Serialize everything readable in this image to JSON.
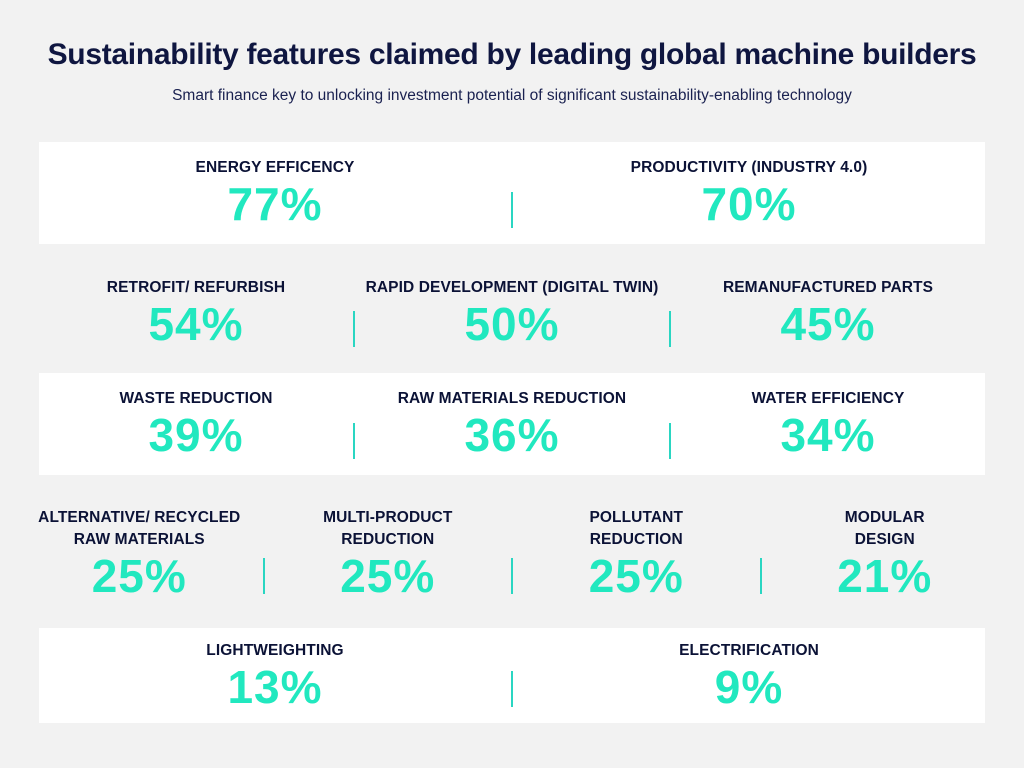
{
  "header": {
    "title": "Sustainability features claimed by leading global machine builders",
    "subtitle": "Smart finance key to unlocking investment potential of significant sustainability-enabling technology"
  },
  "colors": {
    "value": "#21e8bf",
    "title": "#0f1640",
    "band": "#ffffff",
    "background": "#f2f2f2",
    "divider": "#2ad6c2"
  },
  "chart_data": {
    "type": "table",
    "title": "Sustainability features claimed by leading global machine builders",
    "subtitle": "Smart finance key to unlocking investment potential of significant sustainability-enabling technology",
    "unit": "%",
    "categories": [
      "ENERGY EFFICENCY",
      "PRODUCTIVITY (INDUSTRY 4.0)",
      "RETROFIT/ REFURBISH",
      "RAPID DEVELOPMENT (DIGITAL TWIN)",
      "REMANUFACTURED PARTS",
      "WASTE REDUCTION",
      "RAW MATERIALS REDUCTION",
      "WATER EFFICIENCY",
      "ALTERNATIVE/ RECYCLED RAW MATERIALS",
      "MULTI-PRODUCT REDUCTION",
      "POLLUTANT REDUCTION",
      "MODULAR DESIGN",
      "LIGHTWEIGHTING",
      "ELECTRIFICATION"
    ],
    "values": [
      77,
      70,
      54,
      50,
      45,
      39,
      36,
      34,
      25,
      25,
      25,
      21,
      13,
      9
    ],
    "rows": [
      {
        "items": [
          {
            "label_lines": [
              "ENERGY EFFICENCY"
            ],
            "value": "77%"
          },
          {
            "label_lines": [
              "PRODUCTIVITY (INDUSTRY 4.0)"
            ],
            "value": "70%"
          }
        ]
      },
      {
        "items": [
          {
            "label_lines": [
              "RETROFIT/ REFURBISH"
            ],
            "value": "54%"
          },
          {
            "label_lines": [
              "RAPID DEVELOPMENT (DIGITAL TWIN)"
            ],
            "value": "50%"
          },
          {
            "label_lines": [
              "REMANUFACTURED PARTS"
            ],
            "value": "45%"
          }
        ]
      },
      {
        "items": [
          {
            "label_lines": [
              "WASTE REDUCTION"
            ],
            "value": "39%"
          },
          {
            "label_lines": [
              "RAW MATERIALS REDUCTION"
            ],
            "value": "36%"
          },
          {
            "label_lines": [
              "WATER EFFICIENCY"
            ],
            "value": "34%"
          }
        ]
      },
      {
        "items": [
          {
            "label_lines": [
              "ALTERNATIVE/ RECYCLED",
              "RAW MATERIALS"
            ],
            "value": "25%"
          },
          {
            "label_lines": [
              "MULTI-PRODUCT",
              "REDUCTION"
            ],
            "value": "25%"
          },
          {
            "label_lines": [
              "POLLUTANT",
              "REDUCTION"
            ],
            "value": "25%"
          },
          {
            "label_lines": [
              "MODULAR",
              "DESIGN"
            ],
            "value": "21%"
          }
        ]
      },
      {
        "items": [
          {
            "label_lines": [
              "LIGHTWEIGHTING"
            ],
            "value": "13%"
          },
          {
            "label_lines": [
              "ELECTRIFICATION"
            ],
            "value": "9%"
          }
        ]
      }
    ]
  }
}
